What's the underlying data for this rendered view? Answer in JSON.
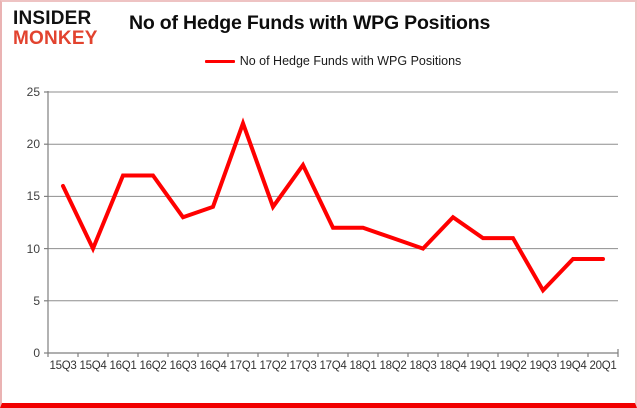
{
  "logo": {
    "line1": "INSIDER",
    "line2": "MONKEY"
  },
  "header": {
    "title": "No of Hedge Funds with WPG Positions"
  },
  "legend": {
    "label": "No of Hedge Funds with WPG Positions"
  },
  "colors": {
    "line": "#ff0000",
    "logo_accent": "#e2432f",
    "grid": "#8e8e8e",
    "axis": "#7f7f7f",
    "axis_text": "#3f3f3f",
    "border_bottom": "#f10000"
  },
  "chart_data": {
    "type": "line",
    "title": "No of Hedge Funds with WPG Positions",
    "categories": [
      "15Q3",
      "15Q4",
      "16Q1",
      "16Q2",
      "16Q3",
      "16Q4",
      "17Q1",
      "17Q2",
      "17Q3",
      "17Q4",
      "18Q1",
      "18Q2",
      "18Q3",
      "18Q4",
      "19Q1",
      "19Q2",
      "19Q3",
      "19Q4",
      "20Q1"
    ],
    "series": [
      {
        "name": "No of Hedge Funds with WPG Positions",
        "values": [
          16,
          10,
          17,
          17,
          13,
          14,
          22,
          14,
          18,
          12,
          12,
          11,
          10,
          13,
          11,
          11,
          6,
          9,
          9
        ]
      }
    ],
    "xlabel": "",
    "ylabel": "",
    "ylim": [
      0,
      25
    ],
    "yticks": [
      0,
      5,
      10,
      15,
      20,
      25
    ],
    "grid": true,
    "legend_position": "top-center"
  }
}
